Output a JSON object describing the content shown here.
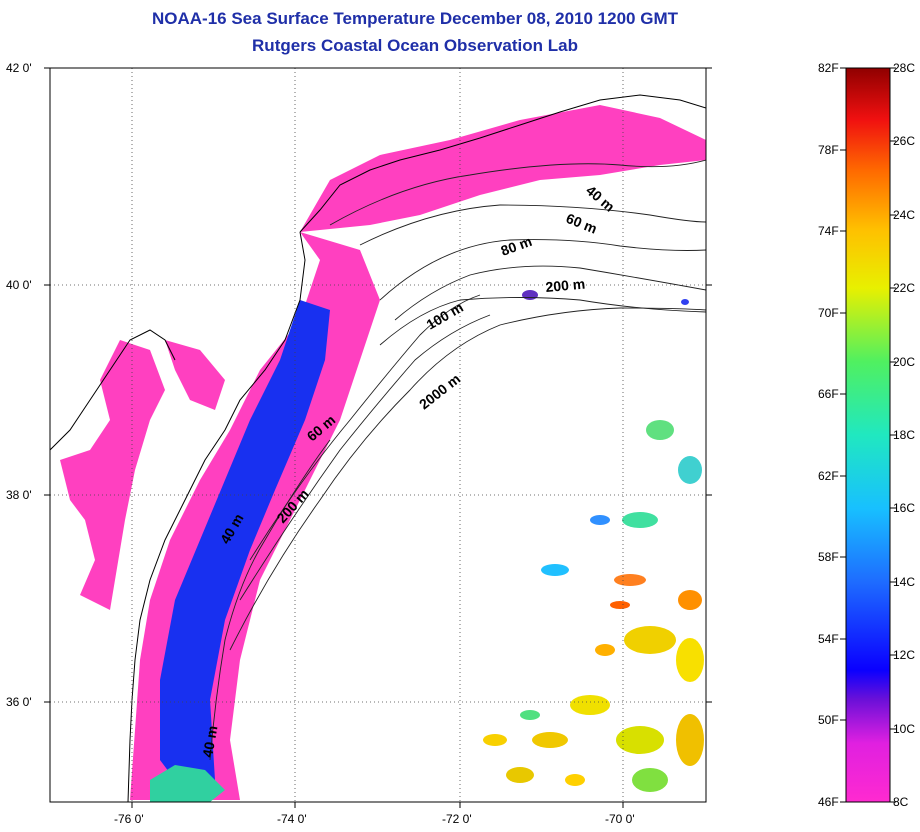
{
  "title": {
    "line1": "NOAA-16 Sea Surface Temperature December 08, 2010 1200 GMT",
    "line2": "Rutgers Coastal Ocean Observation Lab"
  },
  "map": {
    "lat_labels": [
      "42 0'",
      "40 0'",
      "38 0'",
      "36 0'"
    ],
    "lon_labels": [
      "-76 0'",
      "-74 0'",
      "-72 0'",
      "-70 0'"
    ],
    "isobath_labels": [
      "40 m",
      "60 m",
      "80 m",
      "200 m",
      "100 m",
      "2000 m",
      "60 m",
      "40 m",
      "200 m",
      "40 m"
    ],
    "colors": {
      "land": "#ffffff",
      "cold_sst": "#ff40c0",
      "cool_sst": "#2030f0",
      "grid": "#444444",
      "title": "#1f2fa8"
    }
  },
  "colorbar": {
    "fahrenheit": [
      "82F",
      "78F",
      "74F",
      "70F",
      "66F",
      "62F",
      "58F",
      "54F",
      "50F",
      "46F"
    ],
    "celsius": [
      "28C",
      "26C",
      "24C",
      "22C",
      "20C",
      "18C",
      "16C",
      "14C",
      "12C",
      "10C",
      "8C"
    ],
    "range_c": [
      8,
      28
    ],
    "range_f": [
      46,
      82
    ]
  }
}
